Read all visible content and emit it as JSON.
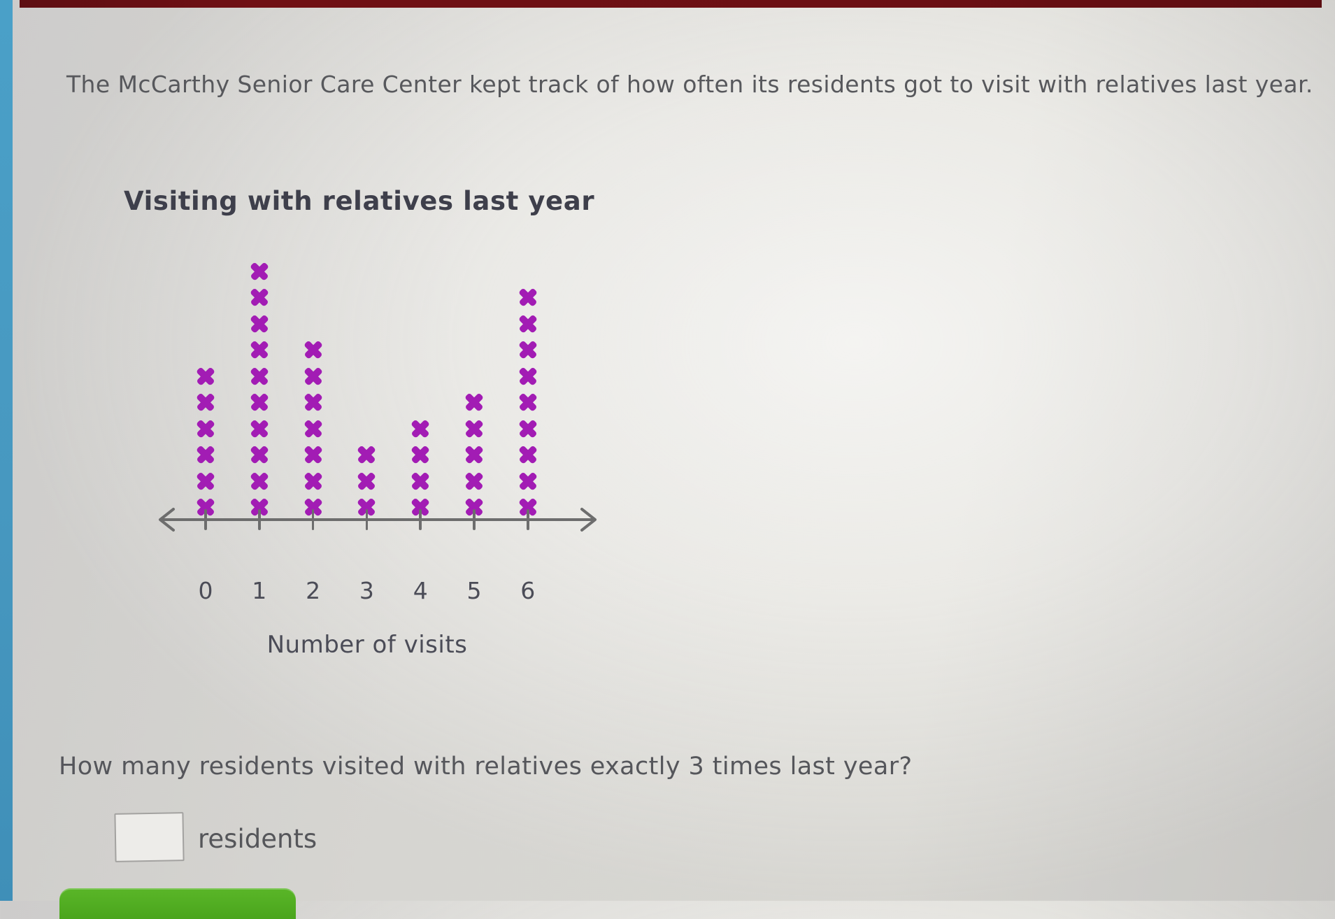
{
  "page": {
    "problem_statement": "The McCarthy Senior Care Center kept track of how often its residents got to visit with relatives last year.",
    "question": "How many residents visited with relatives exactly 3 times last year?",
    "answer_unit_label": "residents",
    "answer_input_value": ""
  },
  "chart_data": {
    "type": "bar",
    "style": "line_plot_with_x_marks",
    "title": "Visiting with relatives last year",
    "categories": [
      "0",
      "1",
      "2",
      "3",
      "4",
      "5",
      "6"
    ],
    "values": [
      6,
      10,
      7,
      3,
      4,
      5,
      9
    ],
    "xlabel": "Number of visits",
    "ylabel": "",
    "x_min": 0,
    "x_max": 6,
    "grid": false,
    "legend": "none",
    "marker": "x",
    "marker_color": "#a21cb4",
    "axis_color": "#6d6d6d",
    "tick_label_color": "#4b4c57"
  },
  "colors": {
    "background": "#e4e3df",
    "body_text": "#57585c",
    "title_text": "#3e3f4b",
    "screen_edge_left": "#4aa0c8",
    "screen_edge_top": "#6b0f13",
    "submit_button_green": "#4fae20",
    "input_border": "#a3a2a0"
  }
}
